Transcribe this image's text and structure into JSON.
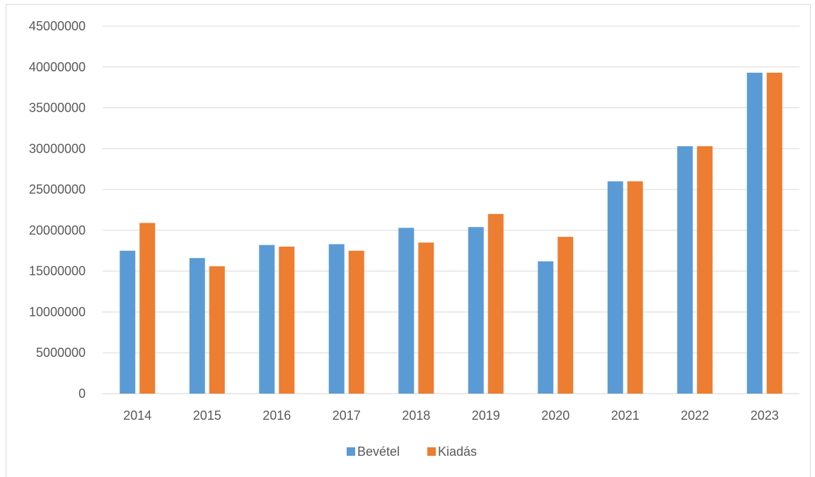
{
  "chart_data": {
    "type": "bar",
    "title": "",
    "xlabel": "",
    "ylabel": "",
    "categories": [
      "2014",
      "2015",
      "2016",
      "2017",
      "2018",
      "2019",
      "2020",
      "2021",
      "2022",
      "2023"
    ],
    "series": [
      {
        "name": "Bevétel",
        "color": "#5b9bd5",
        "values": [
          17500000,
          16600000,
          18200000,
          18300000,
          20300000,
          20400000,
          16200000,
          26000000,
          30300000,
          39300000
        ]
      },
      {
        "name": "Kiadás",
        "color": "#ed7d31",
        "values": [
          20900000,
          15600000,
          18000000,
          17500000,
          18500000,
          22000000,
          19200000,
          26000000,
          30300000,
          39300000
        ]
      }
    ],
    "ylim": [
      0,
      45000000
    ],
    "yticks": [
      "0",
      "5000000",
      "10000000",
      "15000000",
      "20000000",
      "25000000",
      "30000000",
      "35000000",
      "40000000",
      "45000000"
    ],
    "grid": true,
    "legend_position": "bottom"
  }
}
